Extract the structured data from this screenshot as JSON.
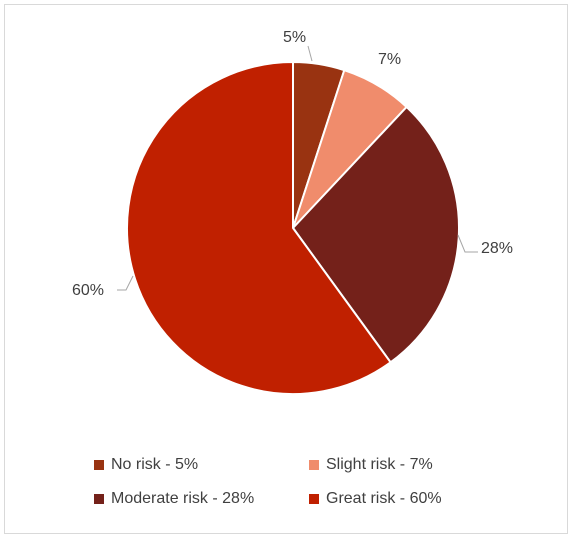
{
  "chart_data": {
    "type": "pie",
    "title": "",
    "legend_position": "bottom",
    "slices": [
      {
        "label": "No risk - 5%",
        "value": 5,
        "data_label": "5%",
        "color": "#993311"
      },
      {
        "label": "Slight risk - 7%",
        "value": 7,
        "data_label": "7%",
        "color": "#F08C6C"
      },
      {
        "label": "Moderate risk - 28%",
        "value": 28,
        "data_label": "28%",
        "color": "#74211A"
      },
      {
        "label": "Great risk - 60%",
        "value": 60,
        "data_label": "60%",
        "color": "#C02000"
      }
    ]
  }
}
